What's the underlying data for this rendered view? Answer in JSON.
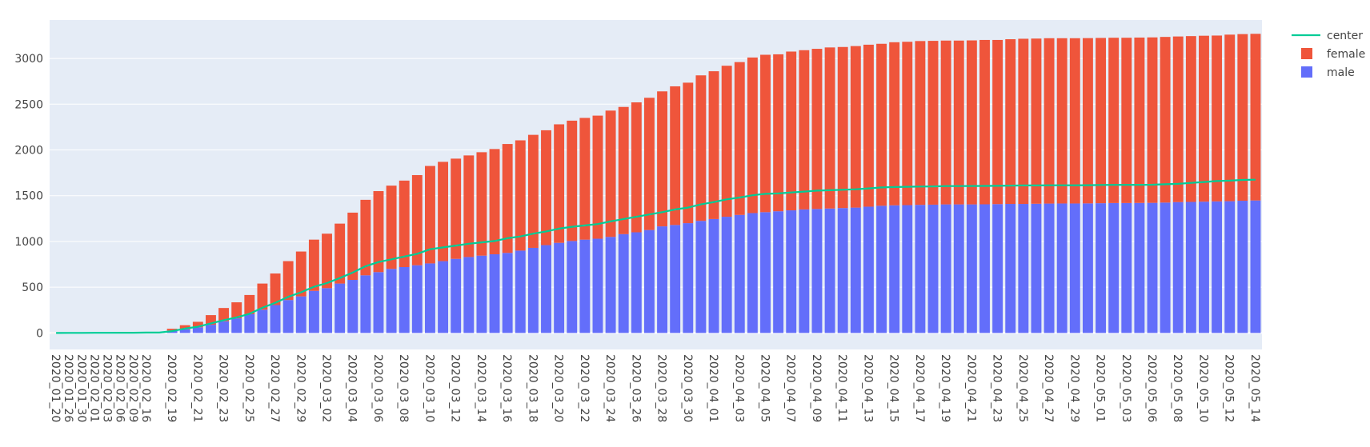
{
  "chart_data": {
    "type": "bar",
    "barmode": "stack",
    "x": [
      "2020_01_20",
      "2020_01_26",
      "2020_01_30",
      "2020_02_01",
      "2020_02_03",
      "2020_02_06",
      "2020_02_09",
      "2020_02_16",
      "2020_02_18",
      "2020_02_19",
      "2020_02_20",
      "2020_02_21",
      "2020_02_22",
      "2020_02_23",
      "2020_02_24",
      "2020_02_25",
      "2020_02_26",
      "2020_02_27",
      "2020_02_28",
      "2020_02_29",
      "2020_03_01",
      "2020_03_02",
      "2020_03_03",
      "2020_03_04",
      "2020_03_05",
      "2020_03_06",
      "2020_03_07",
      "2020_03_08",
      "2020_03_09",
      "2020_03_10",
      "2020_03_11",
      "2020_03_12",
      "2020_03_13",
      "2020_03_14",
      "2020_03_15",
      "2020_03_16",
      "2020_03_17",
      "2020_03_18",
      "2020_03_19",
      "2020_03_20",
      "2020_03_21",
      "2020_03_22",
      "2020_03_23",
      "2020_03_24",
      "2020_03_25",
      "2020_03_26",
      "2020_03_27",
      "2020_03_28",
      "2020_03_29",
      "2020_03_30",
      "2020_03_31",
      "2020_04_01",
      "2020_04_02",
      "2020_04_03",
      "2020_04_04",
      "2020_04_05",
      "2020_04_06",
      "2020_04_07",
      "2020_04_08",
      "2020_04_09",
      "2020_04_10",
      "2020_04_11",
      "2020_04_12",
      "2020_04_13",
      "2020_04_14",
      "2020_04_15",
      "2020_04_16",
      "2020_04_17",
      "2020_04_18",
      "2020_04_19",
      "2020_04_20",
      "2020_04_21",
      "2020_04_22",
      "2020_04_23",
      "2020_04_24",
      "2020_04_25",
      "2020_04_26",
      "2020_04_27",
      "2020_04_28",
      "2020_04_29",
      "2020_04_30",
      "2020_05_01",
      "2020_05_02",
      "2020_05_03",
      "2020_05_05",
      "2020_05_06",
      "2020_05_07",
      "2020_05_08",
      "2020_05_09",
      "2020_05_10",
      "2020_05_11",
      "2020_05_12",
      "2020_05_13",
      "2020_05_14"
    ],
    "series": [
      {
        "name": "male",
        "kind": "bar",
        "color": "#636EFA",
        "values": [
          0,
          0,
          0,
          0,
          0,
          0,
          0,
          0,
          0,
          26,
          40,
          62,
          90,
          128,
          160,
          205,
          255,
          305,
          360,
          400,
          460,
          490,
          540,
          580,
          630,
          665,
          700,
          720,
          740,
          760,
          785,
          810,
          830,
          845,
          860,
          875,
          900,
          930,
          960,
          985,
          1005,
          1020,
          1030,
          1050,
          1080,
          1100,
          1125,
          1165,
          1180,
          1200,
          1225,
          1245,
          1270,
          1290,
          1310,
          1320,
          1330,
          1340,
          1350,
          1355,
          1360,
          1365,
          1370,
          1380,
          1390,
          1395,
          1397,
          1400,
          1402,
          1405,
          1405,
          1405,
          1406,
          1408,
          1410,
          1410,
          1412,
          1414,
          1415,
          1415,
          1416,
          1418,
          1420,
          1420,
          1421,
          1422,
          1425,
          1430,
          1432,
          1435,
          1438,
          1440,
          1445,
          1448
        ]
      },
      {
        "name": "female",
        "kind": "bar",
        "color": "#EF553B",
        "values": [
          1,
          1,
          2,
          3,
          4,
          5,
          6,
          7,
          8,
          20,
          45,
          60,
          105,
          145,
          175,
          210,
          285,
          345,
          425,
          490,
          560,
          595,
          655,
          735,
          825,
          885,
          910,
          945,
          985,
          1065,
          1085,
          1095,
          1110,
          1130,
          1150,
          1190,
          1205,
          1235,
          1255,
          1295,
          1315,
          1330,
          1345,
          1380,
          1390,
          1420,
          1445,
          1475,
          1515,
          1535,
          1590,
          1615,
          1650,
          1670,
          1700,
          1720,
          1715,
          1735,
          1740,
          1750,
          1760,
          1760,
          1765,
          1770,
          1770,
          1782,
          1785,
          1790,
          1790,
          1790,
          1790,
          1792,
          1796,
          1794,
          1800,
          1805,
          1805,
          1807,
          1806,
          1806,
          1806,
          1806,
          1806,
          1806,
          1807,
          1808,
          1810,
          1810,
          1812,
          1813,
          1812,
          1820,
          1821,
          1821
        ]
      },
      {
        "name": "center",
        "kind": "line",
        "color": "#00CC96",
        "values": [
          0,
          1,
          1,
          2,
          2,
          3,
          3,
          4,
          4,
          20,
          48,
          68,
          105,
          140,
          170,
          210,
          275,
          330,
          395,
          445,
          505,
          545,
          600,
          660,
          730,
          775,
          805,
          835,
          865,
          915,
          935,
          955,
          975,
          990,
          1005,
          1035,
          1055,
          1085,
          1110,
          1140,
          1160,
          1175,
          1190,
          1220,
          1245,
          1270,
          1295,
          1320,
          1350,
          1370,
          1405,
          1430,
          1460,
          1480,
          1505,
          1520,
          1525,
          1535,
          1545,
          1555,
          1560,
          1565,
          1570,
          1580,
          1590,
          1595,
          1597,
          1600,
          1602,
          1605,
          1605,
          1606,
          1607,
          1608,
          1610,
          1612,
          1612,
          1614,
          1614,
          1614,
          1615,
          1617,
          1618,
          1618,
          1619,
          1620,
          1625,
          1630,
          1640,
          1650,
          1660,
          1665,
          1672,
          1675
        ]
      }
    ],
    "y_ticks": [
      "0",
      "500",
      "1000",
      "1500",
      "2000",
      "2500",
      "3000"
    ],
    "x_tick_labels": [
      "2020_01_20",
      "2020_01_26",
      "2020_01_30",
      "2020_02_01",
      "2020_02_03",
      "2020_02_06",
      "2020_02_09",
      "2020_02_16",
      "2020_02_19",
      "2020_02_21",
      "2020_02_23",
      "2020_02_25",
      "2020_02_27",
      "2020_02_29",
      "2020_03_02",
      "2020_03_04",
      "2020_03_06",
      "2020_03_08",
      "2020_03_10",
      "2020_03_12",
      "2020_03_14",
      "2020_03_16",
      "2020_03_18",
      "2020_03_20",
      "2020_03_22",
      "2020_03_24",
      "2020_03_26",
      "2020_03_28",
      "2020_03_30",
      "2020_04_01",
      "2020_04_03",
      "2020_04_05",
      "2020_04_07",
      "2020_04_09",
      "2020_04_11",
      "2020_04_13",
      "2020_04_15",
      "2020_04_17",
      "2020_04_19",
      "2020_04_21",
      "2020_04_23",
      "2020_04_25",
      "2020_04_27",
      "2020_04_29",
      "2020_05_01",
      "2020_05_03",
      "2020_05_06",
      "2020_05_08",
      "2020_05_10",
      "2020_05_12",
      "2020_05_14"
    ],
    "ylim": [
      -180,
      3420
    ],
    "grid": true,
    "legend_position": "top-right",
    "legend": [
      "center",
      "female",
      "male"
    ],
    "plot_bgcolor": "#E5ECF6",
    "title": "",
    "xlabel": "",
    "ylabel": ""
  }
}
